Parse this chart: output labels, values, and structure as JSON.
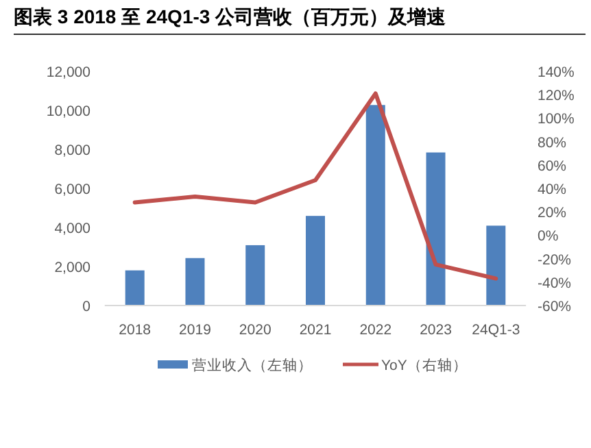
{
  "chart_data": {
    "type": "bar",
    "title": "图表 3 2018 至 24Q1-3 公司营收（百万元）及增速",
    "categories": [
      "2018",
      "2019",
      "2020",
      "2021",
      "2022",
      "2023",
      "24Q1-3"
    ],
    "series": [
      {
        "name": "营业收入（左轴）",
        "color": "#4f81bd",
        "values": [
          1800,
          2430,
          3090,
          4590,
          10270,
          7840,
          4090
        ]
      },
      {
        "name": "YoY（右轴）",
        "type": "line",
        "axis": "y2",
        "color": "#c0504d",
        "values": [
          28,
          33,
          28,
          47,
          121,
          -25,
          -37
        ]
      }
    ],
    "ylim": [
      0,
      12000
    ],
    "yticks": [
      0,
      {
        "value": 2000,
        "label": "2,000"
      },
      {
        "value": 4000,
        "label": "4,000"
      },
      {
        "value": 6000,
        "label": "6,000"
      },
      {
        "value": 8000,
        "label": "8,000"
      },
      {
        "value": 10000,
        "label": "10,000"
      },
      {
        "value": 12000,
        "label": "12,000"
      }
    ],
    "y2lim": [
      -60,
      140
    ],
    "y2ticks": [
      {
        "value": -60,
        "label": "-60%"
      },
      {
        "value": -40,
        "label": "-40%"
      },
      {
        "value": -20,
        "label": "-20%"
      },
      {
        "value": 0,
        "label": "0%"
      },
      {
        "value": 20,
        "label": "20%"
      },
      {
        "value": 40,
        "label": "40%"
      },
      {
        "value": 60,
        "label": "60%"
      },
      {
        "value": 80,
        "label": "80%"
      },
      {
        "value": 100,
        "label": "100%"
      },
      {
        "value": 120,
        "label": "120%"
      },
      {
        "value": 140,
        "label": "140%"
      }
    ],
    "legend": "bottom",
    "grid": false
  }
}
